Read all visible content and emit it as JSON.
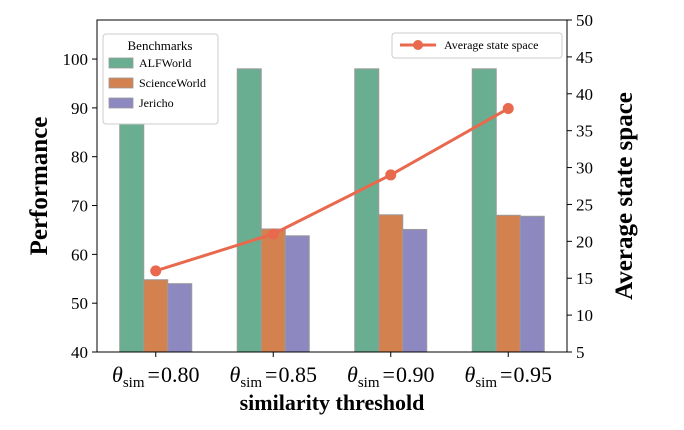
{
  "chart_data": {
    "type": "bar",
    "categories": [
      {
        "symbol": "θ",
        "subscript": "sim",
        "op": "=",
        "value": "0.80"
      },
      {
        "symbol": "θ",
        "subscript": "sim",
        "op": "=",
        "value": "0.85"
      },
      {
        "symbol": "θ",
        "subscript": "sim",
        "op": "=",
        "value": "0.90"
      },
      {
        "symbol": "θ",
        "subscript": "sim",
        "op": "=",
        "value": "0.95"
      }
    ],
    "series": [
      {
        "name": "ALFWorld",
        "values": [
          89,
          98,
          98,
          98
        ],
        "color": "#6aae92",
        "axis": "left"
      },
      {
        "name": "ScienceWorld",
        "values": [
          54.8,
          65.2,
          68.1,
          68.0
        ],
        "color": "#d3814f",
        "axis": "left"
      },
      {
        "name": "Jericho",
        "values": [
          54.0,
          63.8,
          65.1,
          67.8
        ],
        "color": "#8d88bf",
        "axis": "left"
      }
    ],
    "line_series": {
      "name": "Average state space",
      "values": [
        16,
        21,
        29,
        38
      ],
      "color": "#e8694e",
      "axis": "right"
    },
    "xlabel": "similarity threshold",
    "ylabel": "Performance",
    "ylabel_right": "Average state space",
    "ylim": [
      40,
      108
    ],
    "ylim_right": [
      5,
      50
    ],
    "yticks": [
      40,
      50,
      60,
      70,
      80,
      90,
      100
    ],
    "yticks_right": [
      5,
      10,
      15,
      20,
      25,
      30,
      35,
      40,
      45,
      50
    ],
    "legend_bars_title": "Benchmarks",
    "legend_bars_position": "top-left",
    "legend_line_position": "top-right",
    "grid": false
  }
}
